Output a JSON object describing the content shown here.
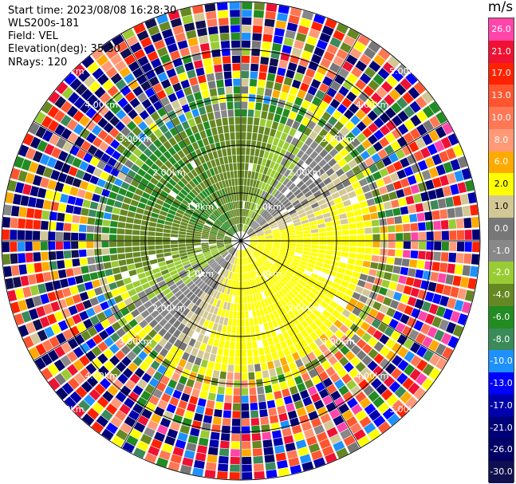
{
  "header": {
    "start_time": "Start time: 2023/08/08 16:28:30",
    "instrument": "WLS200s-181",
    "field": "Field: VEL",
    "elevation": "Elevation(deg): 35.30",
    "nrays": "NRays: 120"
  },
  "chart_data": {
    "type": "heatmap",
    "projection": "polar-ppi",
    "field": "VEL",
    "unit": "m/s",
    "n_rays": 120,
    "max_range_km": 5.0,
    "range_rings_km": [
      1.0,
      2.0,
      3.0,
      4.0,
      5.0
    ],
    "ring_labels": [
      "1.0km",
      "2.00km",
      "3.00km",
      "4.00km",
      "5.00km"
    ],
    "colorbar": {
      "min": -30.0,
      "max": 30.0,
      "ticks": [
        "26.0",
        "21.0",
        "17.0",
        "13.0",
        "10.0",
        "8.0",
        "6.0",
        "2.0",
        "1.0",
        "0.0",
        "-1.0",
        "-2.0",
        "-4.0",
        "-6.0",
        "-8.0",
        "-10.0",
        "-13.0",
        "-17.0",
        "-21.0",
        "-26.0",
        "-30.0"
      ],
      "colors": [
        "#ff44aa",
        "#ee1133",
        "#ff2200",
        "#ff5530",
        "#ff7755",
        "#ff9977",
        "#ffaa00",
        "#ffff00",
        "#d2c896",
        "#777777",
        "#888888",
        "#99cc33",
        "#668822",
        "#228b22",
        "#3a8a5a",
        "#1e90ff",
        "#0000ff",
        "#0000aa",
        "#000077",
        "#000066",
        "#101050"
      ]
    }
  }
}
